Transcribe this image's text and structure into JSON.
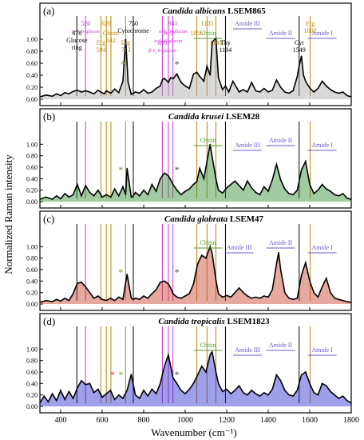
{
  "figure": {
    "ylabel": "Normalized Raman intensity",
    "xlabel": "Wavenumber (cm⁻¹)",
    "x_ticks": [
      "400",
      "600",
      "800",
      "1000",
      "1200",
      "1400",
      "1600",
      "1800"
    ],
    "y_ticks": [
      "0.00",
      "0.20",
      "0.40",
      "0.60",
      "0.80",
      "1.00"
    ],
    "colors": {
      "black": "#000000",
      "gold": "#b8860b",
      "magenta": "#cc33cc",
      "green": "#5a9e2c",
      "blue": "#6a5acd",
      "gray": "#808080",
      "a_fill": "#a9a9a9",
      "b_fill": "#2e8b2e",
      "c_fill": "#c8402a",
      "d_fill": "#2b2bd0",
      "star_black": "#444444",
      "star_green": "#7a9a2a",
      "star_red": "#cc3322"
    }
  },
  "chart_data": [
    {
      "type": "line",
      "panel": "(a)",
      "title_italic": "Candida albicans",
      "title_strain": "LSEM865",
      "xlim": [
        300,
        1800
      ],
      "ylim": [
        0,
        1.2
      ],
      "x": [
        300,
        330,
        360,
        380,
        400,
        420,
        440,
        460,
        480,
        500,
        520,
        540,
        560,
        580,
        594,
        610,
        620,
        642,
        660,
        680,
        700,
        713,
        725,
        740,
        750,
        760,
        780,
        800,
        820,
        840,
        860,
        880,
        890,
        900,
        919,
        930,
        941,
        960,
        980,
        1000,
        1020,
        1040,
        1056,
        1070,
        1090,
        1105,
        1120,
        1130,
        1148,
        1160,
        1180,
        1194,
        1210,
        1230,
        1260,
        1280,
        1300,
        1320,
        1340,
        1360,
        1380,
        1400,
        1420,
        1440,
        1460,
        1480,
        1500,
        1520,
        1540,
        1549,
        1560,
        1570,
        1580,
        1590,
        1602,
        1620,
        1640,
        1660,
        1680,
        1700,
        1720,
        1740,
        1760,
        1780,
        1800
      ],
      "y": [
        0.04,
        0.07,
        0.05,
        0.09,
        0.06,
        0.11,
        0.09,
        0.13,
        0.15,
        0.12,
        0.14,
        0.12,
        0.09,
        0.15,
        0.12,
        0.09,
        0.14,
        0.1,
        0.17,
        0.11,
        0.3,
        1.0,
        0.28,
        0.08,
        0.1,
        0.12,
        0.1,
        0.16,
        0.1,
        0.12,
        0.18,
        0.22,
        0.32,
        0.35,
        0.28,
        0.36,
        0.34,
        0.42,
        0.28,
        0.22,
        0.18,
        0.42,
        0.45,
        0.38,
        0.3,
        0.55,
        0.4,
        0.95,
        1.02,
        0.36,
        0.16,
        0.22,
        0.12,
        0.3,
        0.12,
        0.16,
        0.12,
        0.28,
        0.14,
        0.12,
        0.18,
        0.12,
        0.15,
        0.32,
        0.2,
        0.12,
        0.1,
        0.14,
        0.38,
        0.55,
        0.72,
        0.4,
        0.3,
        0.24,
        0.18,
        0.12,
        0.18,
        0.3,
        0.22,
        0.16,
        0.12,
        0.1,
        0.12,
        0.06,
        0.04
      ],
      "fill": "a_fill",
      "annotations": [
        {
          "labels": [
            "520",
            "α-1, 6-glucan"
          ],
          "wn": 520,
          "color": "magenta",
          "boxed": true
        },
        {
          "labels": [
            "478",
            "Glucose",
            "ring"
          ],
          "wn": 478,
          "color": "black",
          "boxed": false
        },
        {
          "labels": [
            "Erg",
            "594"
          ],
          "wn": 594,
          "color": "gold",
          "boxed": false
        },
        {
          "labels": [
            "620"
          ],
          "wn": 620,
          "color": "gold",
          "boxed": false
        },
        {
          "labels": [
            "Chitin",
            "642"
          ],
          "wn": 642,
          "color": "gold",
          "boxed": false
        },
        {
          "labels": [
            "Erg",
            "713"
          ],
          "wn": 713,
          "color": "gold",
          "boxed": false
        },
        {
          "labels": [
            "750",
            "Cytochrome"
          ],
          "wn": 750,
          "color": "black",
          "boxed": false
        },
        {
          "labels": [
            "919",
            "α-1, 6-glucan"
          ],
          "wn": 919,
          "color": "magenta",
          "boxed": true
        },
        {
          "labels": [
            "890",
            "β-1, 6-glucan"
          ],
          "wn": 890,
          "color": "magenta",
          "boxed": true
        },
        {
          "labels": [
            "941",
            "α-1, 3-glucan"
          ],
          "wn": 941,
          "color": "magenta",
          "boxed": true
        },
        {
          "labels": [
            "Chitin"
          ],
          "wn": 1110,
          "color": "green",
          "boxed": false
        },
        {
          "labels": [
            "1148"
          ],
          "wn": 1148,
          "color": "gold",
          "boxed": false
        },
        {
          "labels": [
            "1105"
          ],
          "wn": 1105,
          "color": "gold",
          "boxed": false
        },
        {
          "labels": [
            "1056"
          ],
          "wn": 1056,
          "color": "gold",
          "boxed": false
        },
        {
          "labels": [
            "Thy",
            "1194"
          ],
          "wn": 1194,
          "color": "black",
          "boxed": false
        },
        {
          "labels": [
            "Amide III"
          ],
          "wn": 1300,
          "color": "blue",
          "boxed": false
        },
        {
          "labels": [
            "Amide II"
          ],
          "wn": 1460,
          "color": "blue",
          "boxed": false
        },
        {
          "labels": [
            "Cyt",
            "1549"
          ],
          "wn": 1549,
          "color": "black",
          "boxed": false
        },
        {
          "labels": [
            "Erg",
            "1602"
          ],
          "wn": 1602,
          "color": "gold",
          "boxed": false
        },
        {
          "labels": [
            "Amide I"
          ],
          "wn": 1660,
          "color": "blue",
          "boxed": false
        }
      ],
      "stars": [
        {
          "wn": 960,
          "color": "star_black"
        },
        {
          "wn": 700,
          "color": "star_green"
        }
      ]
    },
    {
      "type": "line",
      "panel": "(b)",
      "title_italic": "Candida krusei",
      "title_strain": "LSEM28",
      "xlim": [
        300,
        1800
      ],
      "ylim": [
        0,
        1.2
      ],
      "x": [
        300,
        330,
        360,
        380,
        400,
        420,
        440,
        460,
        480,
        500,
        520,
        540,
        560,
        580,
        600,
        620,
        642,
        660,
        680,
        700,
        713,
        720,
        740,
        750,
        760,
        780,
        800,
        820,
        840,
        860,
        880,
        900,
        919,
        930,
        941,
        960,
        980,
        1000,
        1020,
        1040,
        1056,
        1070,
        1090,
        1105,
        1120,
        1130,
        1148,
        1160,
        1180,
        1200,
        1220,
        1240,
        1260,
        1280,
        1300,
        1320,
        1340,
        1360,
        1380,
        1400,
        1420,
        1440,
        1460,
        1480,
        1500,
        1520,
        1540,
        1560,
        1580,
        1600,
        1620,
        1640,
        1660,
        1680,
        1700,
        1720,
        1740,
        1760,
        1780,
        1800
      ],
      "y": [
        0.04,
        0.08,
        0.04,
        0.1,
        0.05,
        0.14,
        0.08,
        0.12,
        0.3,
        0.1,
        0.28,
        0.16,
        0.1,
        0.2,
        0.08,
        0.12,
        0.08,
        0.22,
        0.1,
        0.26,
        0.12,
        0.58,
        0.08,
        0.1,
        0.16,
        0.1,
        0.2,
        0.12,
        0.3,
        0.18,
        0.4,
        0.5,
        0.45,
        0.38,
        0.3,
        0.2,
        0.12,
        0.18,
        0.22,
        0.3,
        0.35,
        0.58,
        0.4,
        0.7,
        1.0,
        0.78,
        0.4,
        0.2,
        0.15,
        0.24,
        0.3,
        0.36,
        0.28,
        0.2,
        0.36,
        0.24,
        0.16,
        0.12,
        0.26,
        0.18,
        0.38,
        0.65,
        0.38,
        0.22,
        0.14,
        0.12,
        0.2,
        0.55,
        0.7,
        0.3,
        0.14,
        0.2,
        0.3,
        0.22,
        0.18,
        0.12,
        0.1,
        0.14,
        0.06,
        0.04
      ],
      "fill": "b_fill",
      "annotations": [
        {
          "labels": [
            "Chitin"
          ],
          "wn": 1110,
          "color": "green",
          "boxed": false
        },
        {
          "labels": [
            "Amide III"
          ],
          "wn": 1300,
          "color": "blue",
          "boxed": false
        },
        {
          "labels": [
            "Amide II"
          ],
          "wn": 1460,
          "color": "blue",
          "boxed": false
        },
        {
          "labels": [
            "Amide I"
          ],
          "wn": 1660,
          "color": "blue",
          "boxed": false
        }
      ],
      "stars": [
        {
          "wn": 960,
          "color": "star_black"
        },
        {
          "wn": 690,
          "color": "star_green"
        }
      ]
    },
    {
      "type": "line",
      "panel": "(c)",
      "title_italic": "Candida glabrata",
      "title_strain": "LSEM47",
      "xlim": [
        300,
        1800
      ],
      "ylim": [
        0,
        1.2
      ],
      "x": [
        300,
        330,
        360,
        380,
        400,
        420,
        440,
        460,
        480,
        500,
        520,
        540,
        560,
        580,
        600,
        620,
        640,
        660,
        680,
        700,
        720,
        740,
        750,
        760,
        780,
        800,
        820,
        840,
        860,
        880,
        900,
        919,
        930,
        941,
        960,
        980,
        1000,
        1020,
        1040,
        1060,
        1080,
        1100,
        1120,
        1130,
        1148,
        1160,
        1180,
        1200,
        1220,
        1240,
        1260,
        1280,
        1300,
        1320,
        1340,
        1360,
        1380,
        1400,
        1420,
        1440,
        1450,
        1460,
        1480,
        1500,
        1520,
        1540,
        1560,
        1580,
        1600,
        1620,
        1640,
        1660,
        1680,
        1700,
        1720,
        1740,
        1760,
        1780,
        1800
      ],
      "y": [
        0.03,
        0.06,
        0.04,
        0.08,
        0.05,
        0.1,
        0.06,
        0.18,
        0.36,
        0.38,
        0.3,
        0.2,
        0.1,
        0.14,
        0.08,
        0.06,
        0.1,
        0.06,
        0.12,
        0.08,
        0.52,
        0.1,
        0.08,
        0.1,
        0.08,
        0.14,
        0.1,
        0.18,
        0.25,
        0.38,
        0.4,
        0.35,
        0.28,
        0.18,
        0.12,
        0.1,
        0.14,
        0.18,
        0.35,
        0.7,
        0.85,
        0.8,
        1.0,
        0.88,
        0.42,
        0.18,
        0.12,
        0.15,
        0.12,
        0.2,
        0.28,
        0.2,
        0.14,
        0.1,
        0.12,
        0.1,
        0.14,
        0.12,
        0.25,
        0.7,
        0.9,
        0.6,
        0.2,
        0.1,
        0.08,
        0.1,
        0.5,
        0.72,
        0.4,
        0.2,
        0.12,
        0.3,
        0.45,
        0.2,
        0.1,
        0.08,
        0.06,
        0.04,
        0.03
      ],
      "fill": "c_fill",
      "annotations": [
        {
          "labels": [
            "Chitin"
          ],
          "wn": 1110,
          "color": "green",
          "boxed": false
        },
        {
          "labels": [
            "Amide III"
          ],
          "wn": 1260,
          "color": "blue",
          "boxed": false
        },
        {
          "labels": [
            "Amide II"
          ],
          "wn": 1460,
          "color": "blue",
          "boxed": false
        },
        {
          "labels": [
            "Amide I"
          ],
          "wn": 1660,
          "color": "blue",
          "boxed": false
        }
      ],
      "stars": [
        {
          "wn": 960,
          "color": "star_black"
        },
        {
          "wn": 690,
          "color": "star_green"
        }
      ]
    },
    {
      "type": "line",
      "panel": "(d)",
      "title_italic": "Candida tropicalis",
      "title_strain": "LSEM1823",
      "xlim": [
        300,
        1800
      ],
      "ylim": [
        0,
        1.2
      ],
      "x": [
        300,
        320,
        340,
        360,
        380,
        400,
        420,
        440,
        460,
        480,
        500,
        520,
        540,
        560,
        580,
        600,
        620,
        640,
        660,
        680,
        700,
        720,
        740,
        760,
        780,
        800,
        820,
        840,
        860,
        880,
        900,
        919,
        930,
        941,
        960,
        980,
        1000,
        1020,
        1040,
        1060,
        1080,
        1100,
        1120,
        1130,
        1148,
        1160,
        1180,
        1200,
        1220,
        1240,
        1260,
        1280,
        1300,
        1320,
        1340,
        1360,
        1380,
        1400,
        1420,
        1440,
        1460,
        1480,
        1500,
        1520,
        1540,
        1560,
        1580,
        1600,
        1620,
        1640,
        1660,
        1680,
        1700,
        1720,
        1740,
        1760,
        1780,
        1800
      ],
      "y": [
        0.06,
        0.18,
        0.08,
        0.22,
        0.1,
        0.28,
        0.12,
        0.26,
        0.14,
        0.32,
        0.45,
        0.38,
        0.4,
        0.24,
        0.3,
        0.16,
        0.22,
        0.28,
        0.12,
        0.2,
        0.14,
        0.28,
        0.56,
        0.2,
        0.14,
        0.28,
        0.18,
        0.3,
        0.22,
        0.4,
        0.7,
        0.9,
        0.7,
        0.5,
        0.4,
        0.28,
        0.22,
        0.3,
        0.4,
        0.55,
        0.7,
        0.6,
        0.9,
        0.95,
        0.6,
        0.4,
        0.26,
        0.3,
        0.22,
        0.28,
        0.36,
        0.24,
        0.2,
        0.28,
        0.22,
        0.18,
        0.24,
        0.2,
        0.3,
        0.55,
        0.45,
        0.28,
        0.2,
        0.18,
        0.28,
        0.55,
        0.6,
        0.4,
        0.24,
        0.2,
        0.4,
        0.36,
        0.26,
        0.2,
        0.14,
        0.18,
        0.1,
        0.06
      ],
      "fill": "d_fill",
      "annotations": [
        {
          "labels": [
            "Chitin"
          ],
          "wn": 1110,
          "color": "green",
          "boxed": false
        },
        {
          "labels": [
            "Amide III"
          ],
          "wn": 1300,
          "color": "blue",
          "boxed": false
        },
        {
          "labels": [
            "Amide II"
          ],
          "wn": 1460,
          "color": "blue",
          "boxed": false
        },
        {
          "labels": [
            "Amide I"
          ],
          "wn": 1660,
          "color": "blue",
          "boxed": false
        }
      ],
      "stars": [
        {
          "wn": 960,
          "color": "star_black"
        },
        {
          "wn": 650,
          "color": "star_red"
        },
        {
          "wn": 690,
          "color": "star_green"
        }
      ]
    }
  ],
  "marker_lines": [
    {
      "wn": 478,
      "color": "black"
    },
    {
      "wn": 520,
      "color": "magenta"
    },
    {
      "wn": 594,
      "color": "gold"
    },
    {
      "wn": 620,
      "color": "gold"
    },
    {
      "wn": 642,
      "color": "gold"
    },
    {
      "wn": 713,
      "color": "gold"
    },
    {
      "wn": 750,
      "color": "black"
    },
    {
      "wn": 890,
      "color": "magenta"
    },
    {
      "wn": 919,
      "color": "magenta"
    },
    {
      "wn": 941,
      "color": "magenta"
    },
    {
      "wn": 1056,
      "color": "gold"
    },
    {
      "wn": 1105,
      "color": "gold"
    },
    {
      "wn": 1148,
      "color": "gold"
    },
    {
      "wn": 1194,
      "color": "black"
    },
    {
      "wn": 1549,
      "color": "black"
    },
    {
      "wn": 1602,
      "color": "gold"
    }
  ]
}
